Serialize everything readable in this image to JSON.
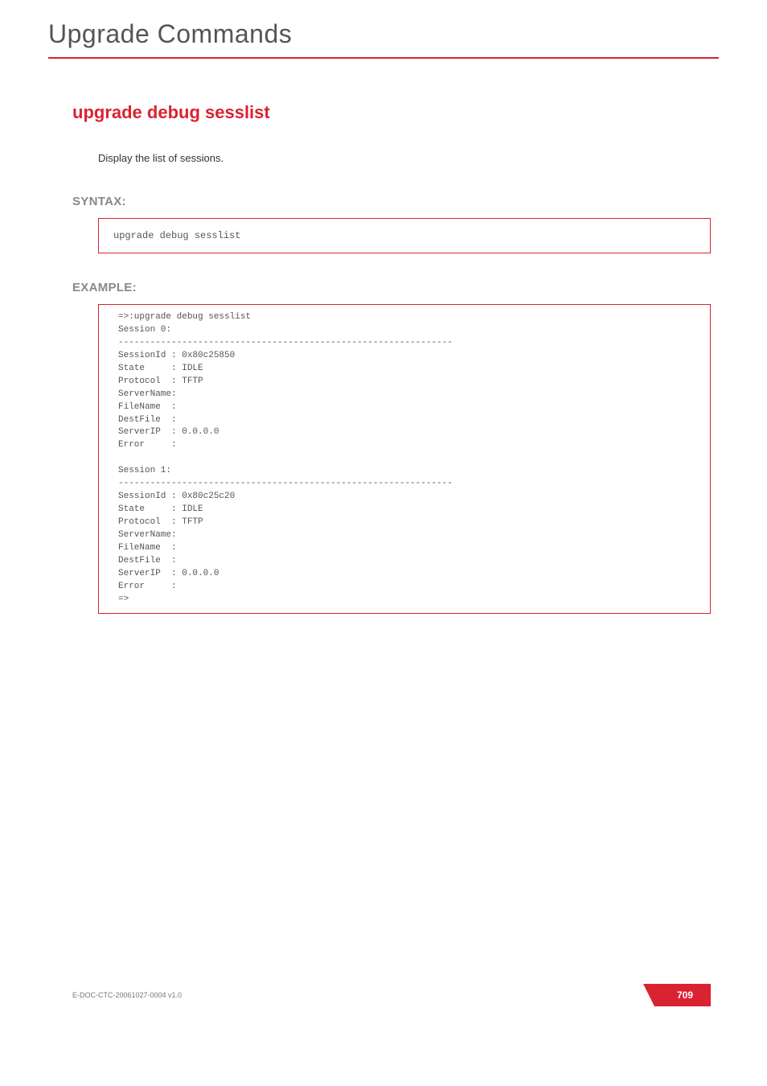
{
  "chapter_title": "Upgrade Commands",
  "command_title": "upgrade debug sesslist",
  "description": "Display the list of sessions.",
  "sections": {
    "syntax_label": "SYNTAX:",
    "syntax_code": "upgrade debug sesslist",
    "example_label": "EXAMPLE:",
    "example_code": "=>:upgrade debug sesslist\nSession 0:\n---------------------------------------------------------------\nSessionId : 0x80c25850\nState     : IDLE\nProtocol  : TFTP\nServerName:\nFileName  :\nDestFile  :\nServerIP  : 0.0.0.0\nError     :\n\nSession 1:\n---------------------------------------------------------------\nSessionId : 0x80c25c20\nState     : IDLE\nProtocol  : TFTP\nServerName:\nFileName  :\nDestFile  :\nServerIP  : 0.0.0.0\nError     :\n=>"
  },
  "footer": {
    "doc_id": "E-DOC-CTC-20061027-0004 v1.0",
    "page_number": "709"
  },
  "colors": {
    "accent": "#d92332",
    "muted": "#888"
  }
}
